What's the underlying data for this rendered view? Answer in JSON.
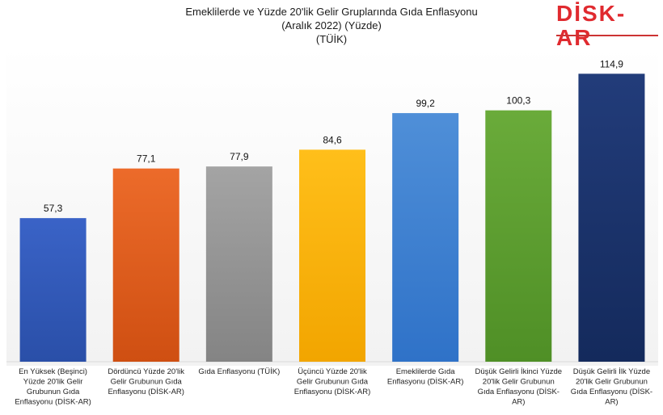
{
  "chart_data": {
    "type": "bar",
    "title": "Emeklilerde ve Yüzde 20'lik Gelir Gruplarında Gıda Enflasyonu",
    "subtitle": "(Aralık 2022) (Yüzde)",
    "source": "(TÜİK)",
    "categories": [
      [
        "En Yüksek (Beşinci)",
        "Yüzde 20'lik Gelir",
        "Grubunun Gıda",
        "Enflasyonu (DİSK-AR)"
      ],
      [
        "Dördüncü Yüzde 20'lik",
        "Gelir Grubunun Gıda",
        "Enflasyonu (DİSK-AR)"
      ],
      [
        "Gıda Enflasyonu (TÜİK)"
      ],
      [
        "Üçüncü Yüzde 20'lik",
        "Gelir Grubunun Gıda",
        "Enflasyonu (DİSK-AR)"
      ],
      [
        "Emeklilerde Gıda",
        "Enflasyonu (DİSK-AR)"
      ],
      [
        "Düşük Gelirli İkinci Yüzde",
        "20'lik Gelir Grubunun",
        "Gıda Enflasyonu (DİSK-",
        "AR)"
      ],
      [
        "Düşük Gelirli İlk Yüzde",
        "20'lik Gelir Grubunun",
        "Gıda Enflasyonu (DİSK-",
        "AR)"
      ]
    ],
    "values": [
      57.3,
      77.1,
      77.9,
      84.6,
      99.2,
      100.3,
      114.9
    ],
    "value_labels": [
      "57,3",
      "77,1",
      "77,9",
      "84,6",
      "99,2",
      "100,3",
      "114,9"
    ],
    "colors": [
      [
        "#3a63c7",
        "#2a4fa8"
      ],
      [
        "#ec6b2a",
        "#cf4f12"
      ],
      [
        "#a4a4a4",
        "#848484"
      ],
      [
        "#ffbf1a",
        "#f2a500"
      ],
      [
        "#4f8fd8",
        "#2f72c8"
      ],
      [
        "#6aab3a",
        "#4f8f26"
      ],
      [
        "#223c7a",
        "#142a5c"
      ]
    ],
    "ylim": [
      0,
      125
    ],
    "grid": false,
    "legend": "none"
  },
  "logo": {
    "text": "DİSK-AR"
  }
}
